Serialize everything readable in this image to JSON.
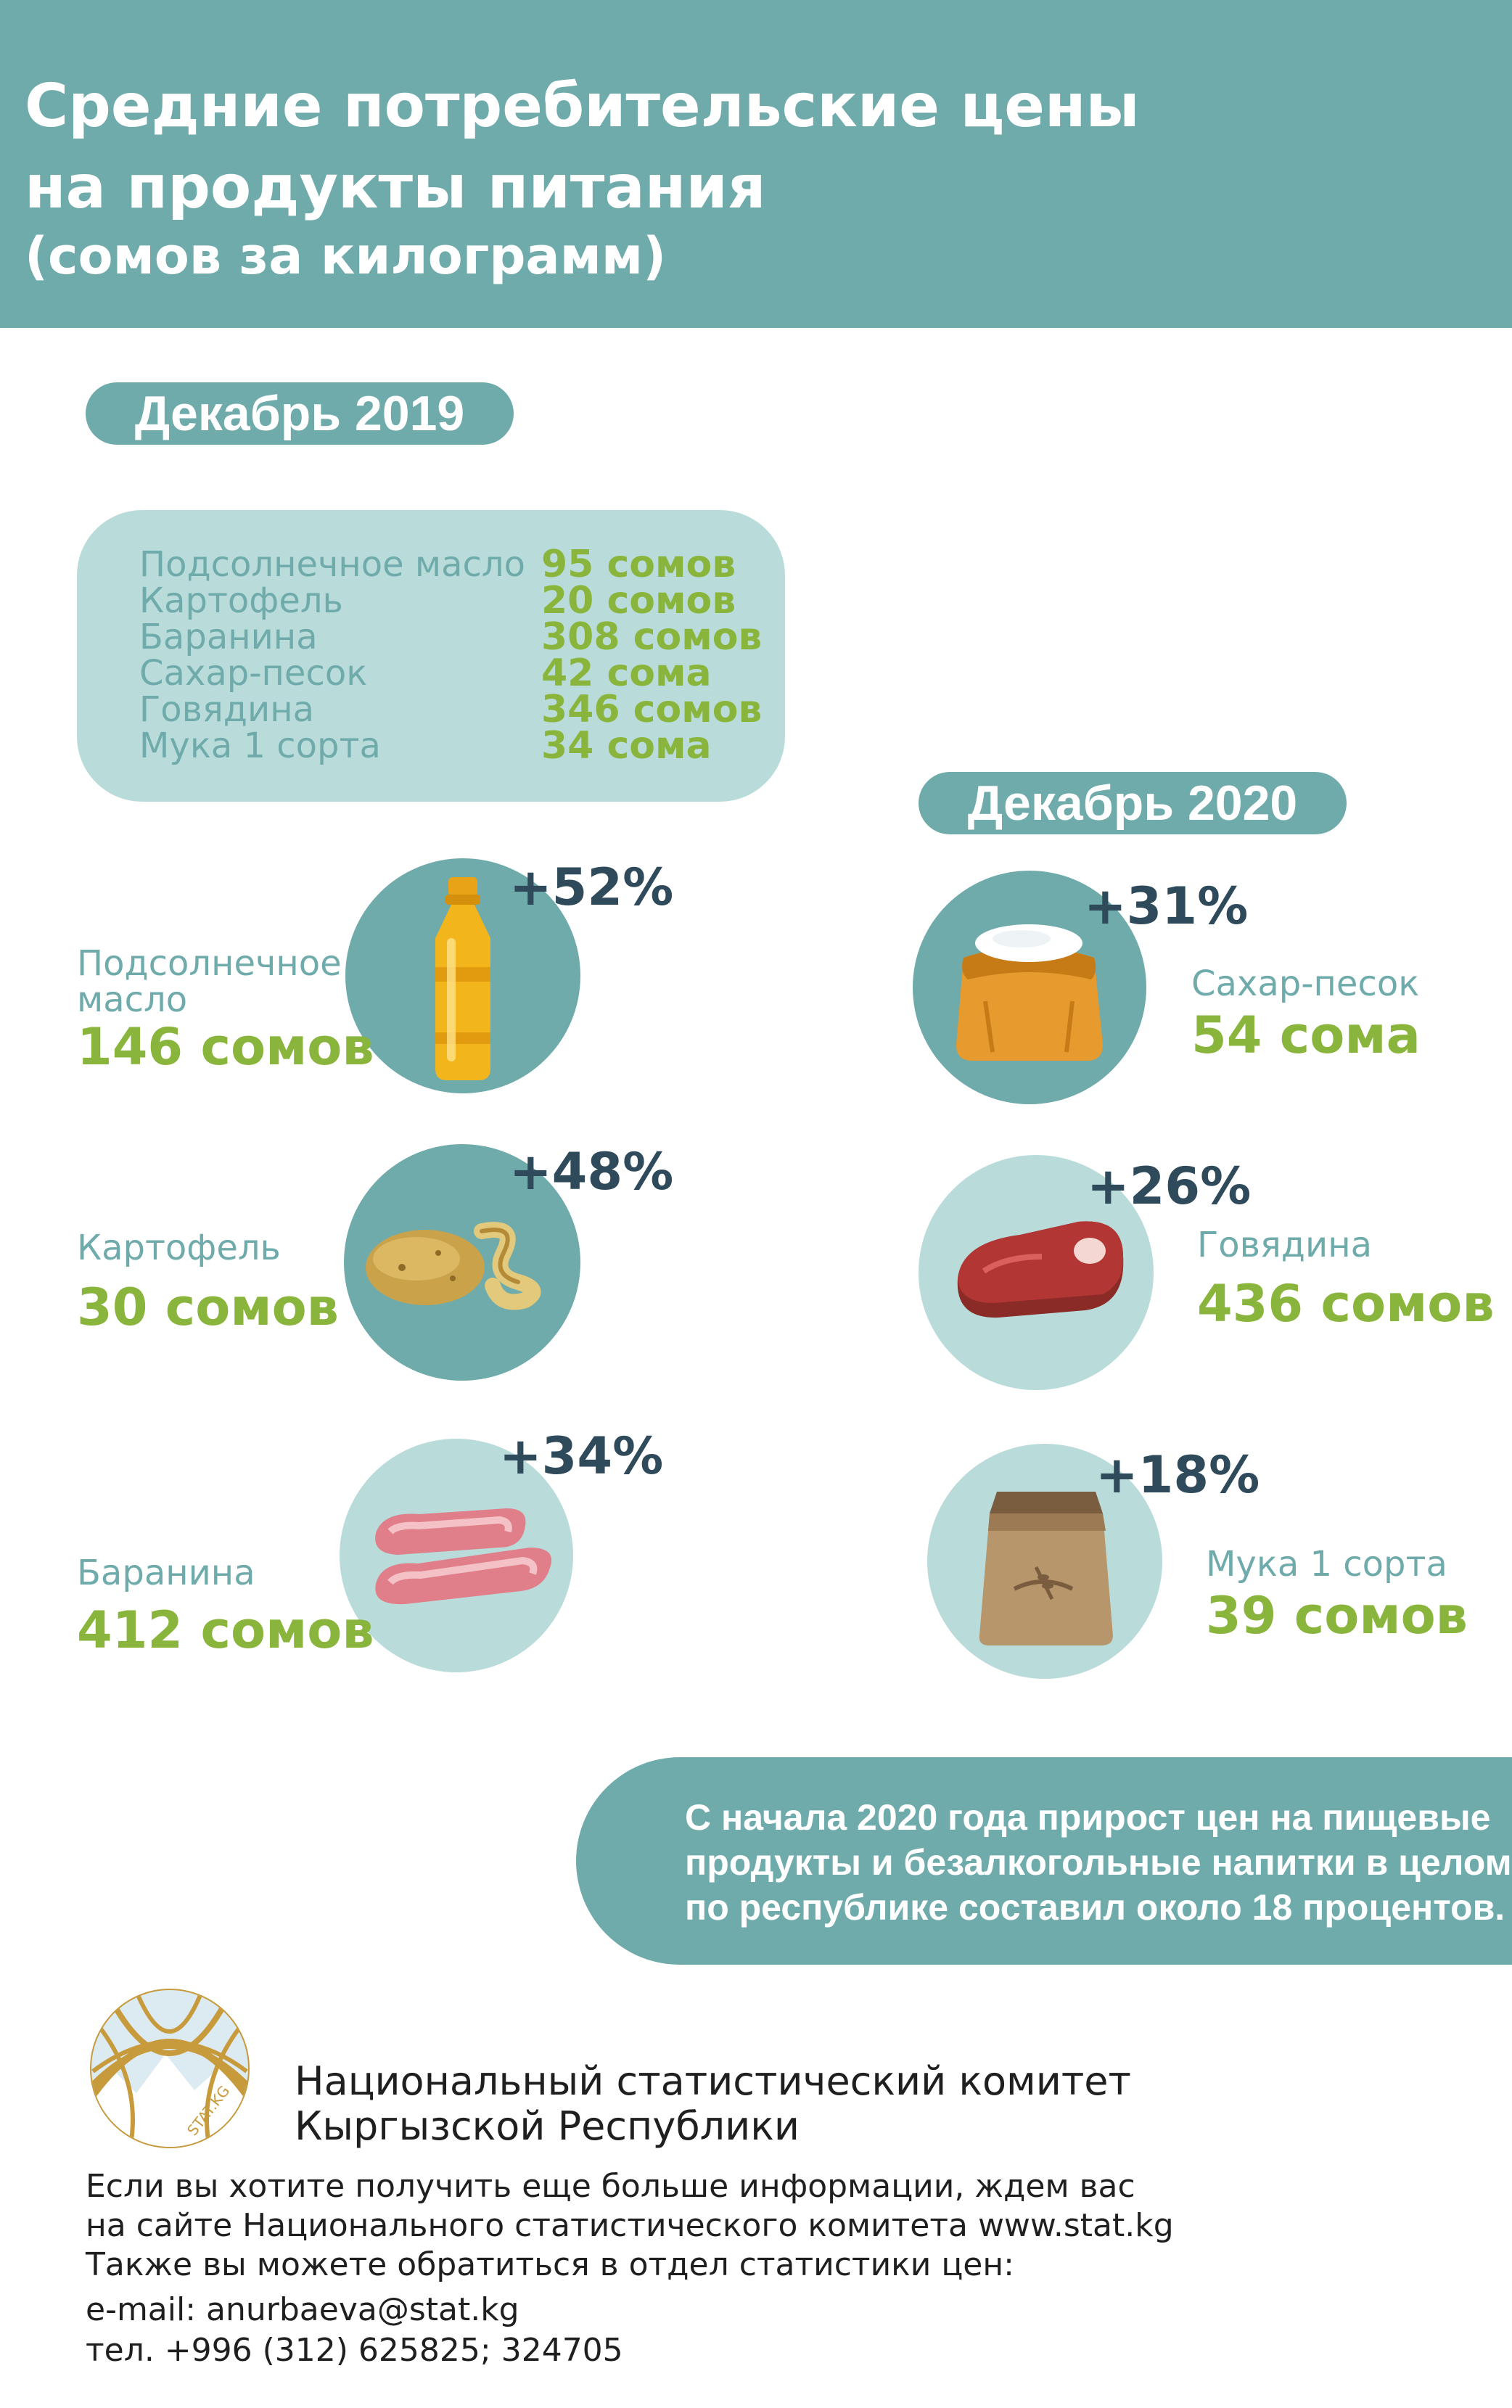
{
  "header": {
    "title_line1": "Средние потребительские цены",
    "title_line2": "на продукты питания",
    "title_line3": "(сомов за килограмм)"
  },
  "dec2019": {
    "label": "Декабрь 2019",
    "items": [
      {
        "name": "Подсолнечное масло",
        "price": "95 сомов"
      },
      {
        "name": "Картофель",
        "price": "20 сомов"
      },
      {
        "name": "Баранина",
        "price": "308 сомов"
      },
      {
        "name": "Сахар-песок",
        "price": "42 сома"
      },
      {
        "name": "Говядина",
        "price": "346 сомов"
      },
      {
        "name": "Мука 1 сорта",
        "price": "34 сома"
      }
    ]
  },
  "dec2020": {
    "label": "Декабрь 2020",
    "oil": {
      "name_line1": "Подсолнечное",
      "name_line2": "масло",
      "price": "146 сомов",
      "change": "+52%",
      "icon": "oil-bottle-icon"
    },
    "potato": {
      "name": "Картофель",
      "price": "30 сомов",
      "change": "+48%",
      "icon": "potato-icon"
    },
    "mutton": {
      "name": "Баранина",
      "price": "412 сомов",
      "change": "+34%",
      "icon": "mutton-icon"
    },
    "sugar": {
      "name": "Сахар-песок",
      "price": "54 сома",
      "change": "+31%",
      "icon": "sugar-sack-icon"
    },
    "beef": {
      "name": "Говядина",
      "price": "436 сомов",
      "change": "+26%",
      "icon": "beef-steak-icon"
    },
    "flour": {
      "name": "Мука 1 сорта",
      "price": "39 сомов",
      "change": "+18%",
      "icon": "flour-bag-icon"
    }
  },
  "note": {
    "line1": "С начала 2020 года прирост цен на пищевые",
    "line2": "продукты и безалкогольные напитки  в целом",
    "line3": "по республике составил около 18 процентов."
  },
  "footer": {
    "logo_text": "STAT.KG",
    "org_line1": "Национальный статистический комитет",
    "org_line2": "Кыргызской Республики",
    "info_line1": "Если вы хотите получить еще больше информации, ждем вас",
    "info_line2": "на сайте Национального статистического комитета www.stat.kg",
    "info_line3": "Также вы можете обратиться в отдел статистики цен:",
    "email": "e-mail: anurbaeva@stat.kg",
    "phone": "тел. +996 (312) 625825; 324705"
  },
  "colors": {
    "teal": "#70abab",
    "light_teal": "#b9dcda",
    "green": "#8ab53c",
    "navy": "#2f4a5b"
  }
}
